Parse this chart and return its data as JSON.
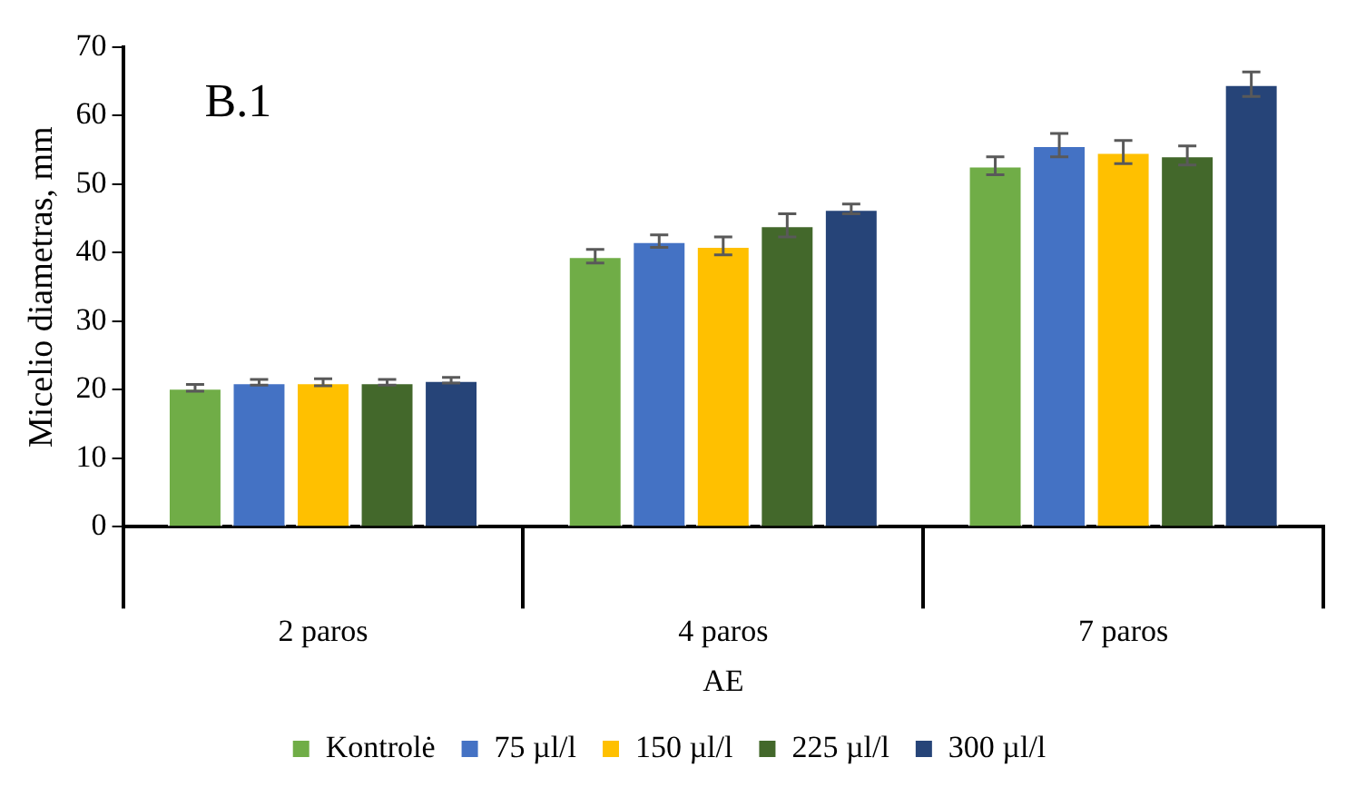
{
  "chart_data": {
    "type": "bar",
    "title": "B.1",
    "xlabel": "AE",
    "ylabel": "Micelio diametras, mm",
    "categories": [
      "2 paros",
      "4 paros",
      "7 paros"
    ],
    "series": [
      {
        "name": "Kontrolė",
        "color": "#70ad47",
        "values": [
          20.3,
          39.5,
          52.7
        ],
        "errors": [
          0.5,
          1,
          1.3
        ]
      },
      {
        "name": "75 µl/l",
        "color": "#4472c4",
        "values": [
          21.1,
          41.7,
          55.7
        ],
        "errors": [
          0.4,
          0.9,
          1.7
        ]
      },
      {
        "name": "150 µl/l",
        "color": "#ffc000",
        "values": [
          21.1,
          41,
          54.7
        ],
        "errors": [
          0.5,
          1.3,
          1.7
        ]
      },
      {
        "name": "225 µl/l",
        "color": "#43682b",
        "values": [
          21.1,
          44,
          54.2
        ],
        "errors": [
          0.4,
          1.7,
          1.4
        ]
      },
      {
        "name": "300 µl/l",
        "color": "#264478",
        "values": [
          21.4,
          46.4,
          64.6
        ],
        "errors": [
          0.4,
          0.7,
          1.8
        ]
      }
    ],
    "ylim": [
      0,
      70
    ],
    "yticks": [
      0,
      10,
      20,
      30,
      40,
      50,
      60,
      70
    ],
    "grid": false,
    "legend": "bottom"
  }
}
